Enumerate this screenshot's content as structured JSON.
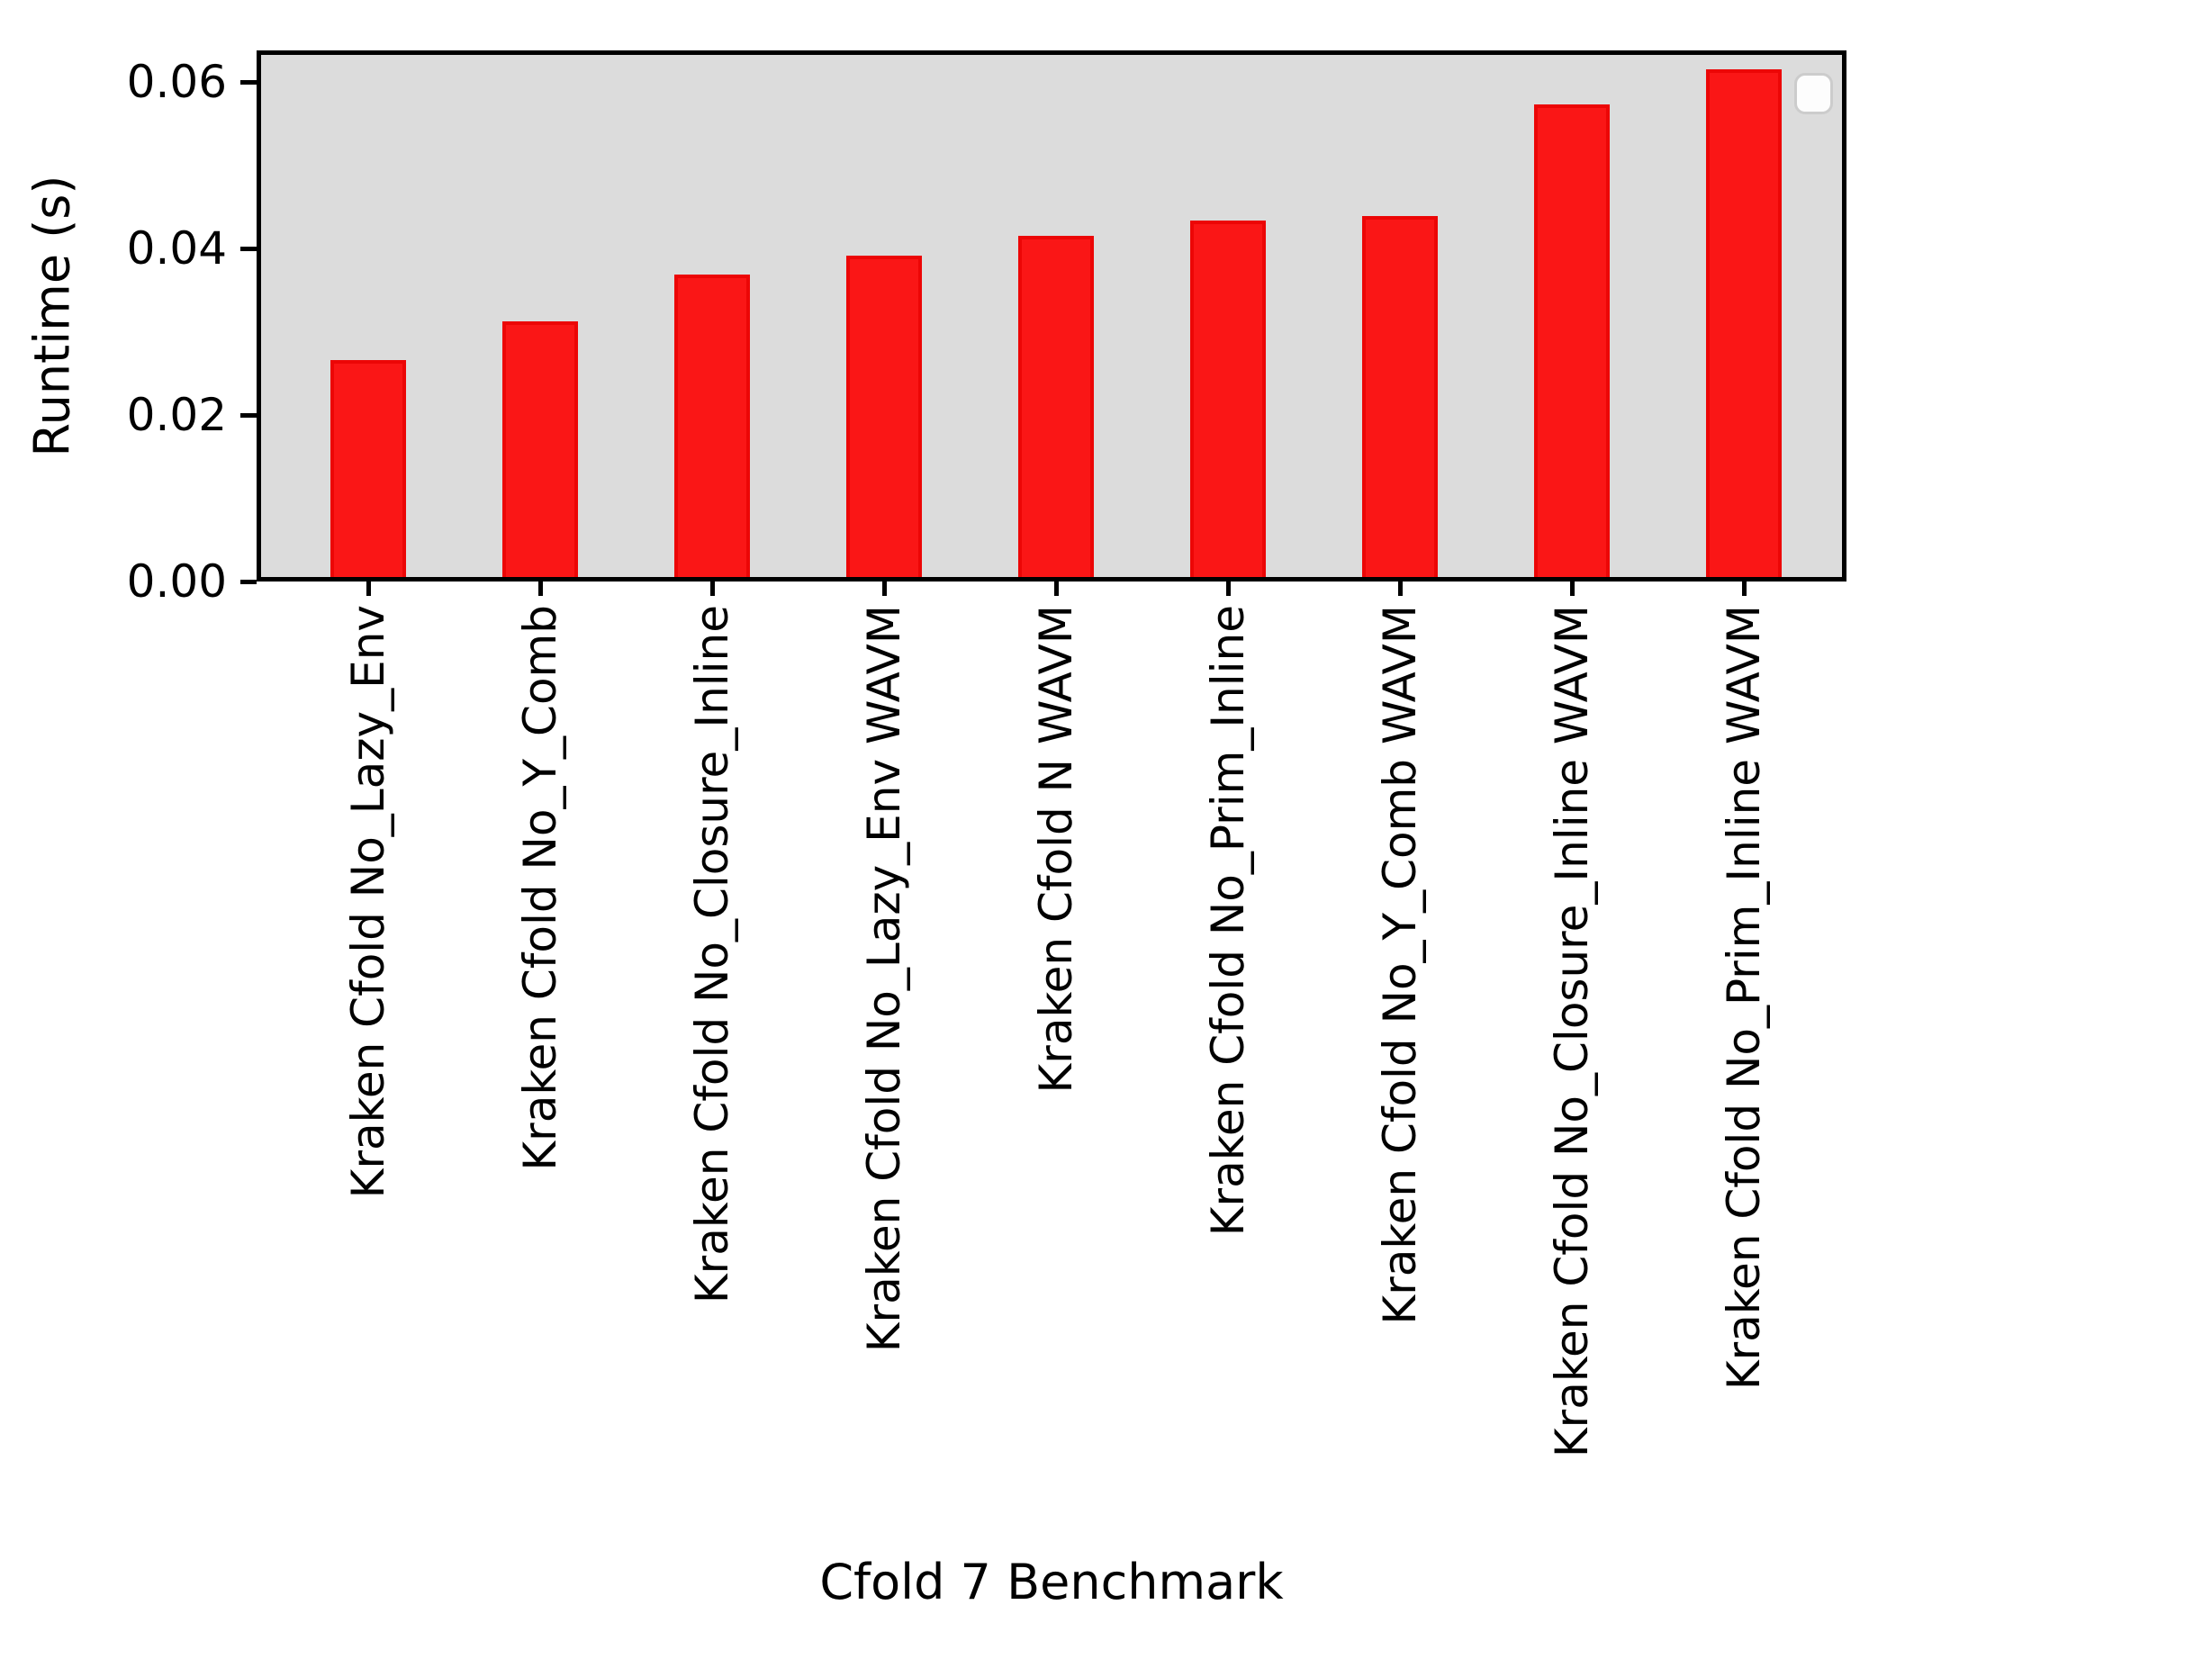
{
  "chart_data": {
    "type": "bar",
    "title": "",
    "xlabel": "Cfold 7 Benchmark",
    "ylabel": "Runtime (s)",
    "categories": [
      "Kraken Cfold No_Lazy_Env",
      "Kraken Cfold No_Y_Comb",
      "Kraken Cfold No_Closure_Inline",
      "Kraken Cfold No_Lazy_Env WAVM",
      "Kraken Cfold N WAVM",
      "Kraken Cfold No_Prim_Inline",
      "Kraken Cfold No_Y_Comb WAVM",
      "Kraken Cfold No_Closure_Inline WAVM",
      "Kraken Cfold No_Prim_Inline WAVM"
    ],
    "values": [
      0.026,
      0.0307,
      0.0363,
      0.0386,
      0.041,
      0.0428,
      0.0434,
      0.0568,
      0.061
    ],
    "ytick_labels": [
      "0.00",
      "0.02",
      "0.04",
      "0.06"
    ],
    "ytick_values": [
      0.0,
      0.02,
      0.04,
      0.06
    ],
    "ylim": [
      0,
      0.0628
    ],
    "grid": false,
    "legend": "empty-box-top-right",
    "bar_color": "#fa1616",
    "bar_edge_color": "#ec0606",
    "plot_bg_color": "#dcdcdc",
    "spine_color": "#000000"
  }
}
